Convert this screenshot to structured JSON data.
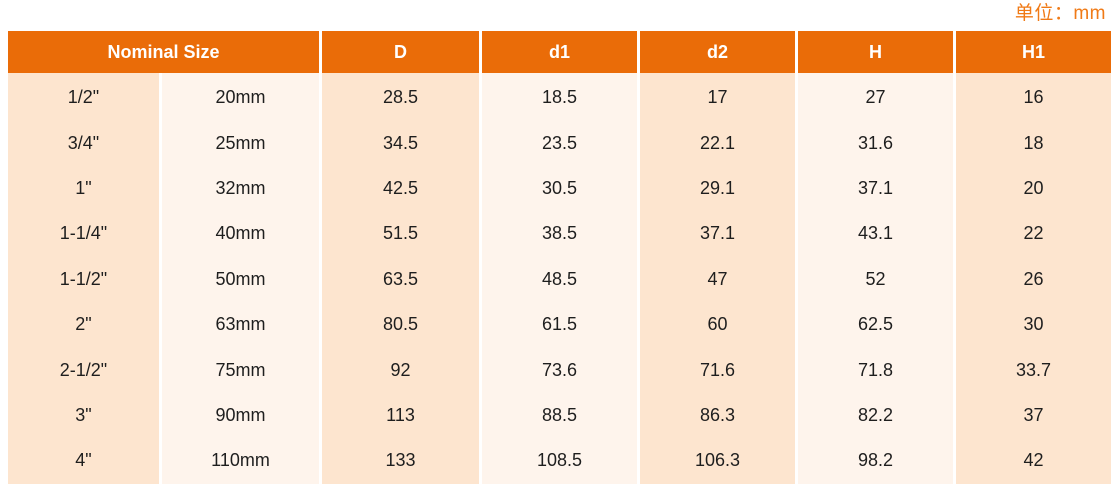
{
  "unit_label": "单位：mm",
  "headers": {
    "nominal_size": "Nominal Size",
    "D": "D",
    "d1": "d1",
    "d2": "d2",
    "H": "H",
    "H1": "H1"
  },
  "rows": [
    [
      "1/2\"",
      "20mm",
      "28.5",
      "18.5",
      "17",
      "27",
      "16"
    ],
    [
      "3/4\"",
      "25mm",
      "34.5",
      "23.5",
      "22.1",
      "31.6",
      "18"
    ],
    [
      "1\"",
      "32mm",
      "42.5",
      "30.5",
      "29.1",
      "37.1",
      "20"
    ],
    [
      "1-1/4\"",
      "40mm",
      "51.5",
      "38.5",
      "37.1",
      "43.1",
      "22"
    ],
    [
      "1-1/2\"",
      "50mm",
      "63.5",
      "48.5",
      "47",
      "52",
      "26"
    ],
    [
      "2\"",
      "63mm",
      "80.5",
      "61.5",
      "60",
      "62.5",
      "30"
    ],
    [
      "2-1/2\"",
      "75mm",
      "92",
      "73.6",
      "71.6",
      "71.8",
      "33.7"
    ],
    [
      "3\"",
      "90mm",
      "113",
      "88.5",
      "86.3",
      "82.2",
      "37"
    ],
    [
      "4\"",
      "110mm",
      "133",
      "108.5",
      "106.3",
      "98.2",
      "42"
    ]
  ],
  "colors": {
    "header_bg": "#ea6c08",
    "unit_text": "#f07a16",
    "band_dark": "#fde5cf",
    "band_light": "#fef4ec"
  }
}
